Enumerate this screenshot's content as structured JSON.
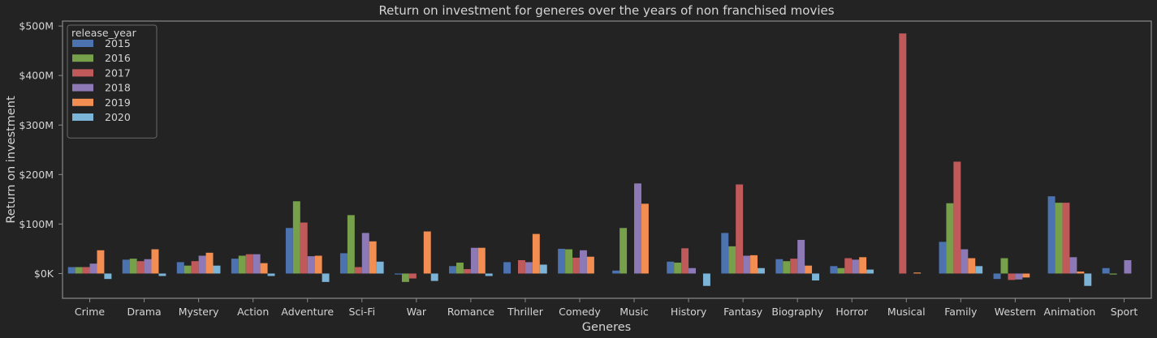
{
  "chart_data": {
    "type": "bar",
    "title": "Return on investment for generes over the years of non franchised movies",
    "xlabel": "Generes",
    "ylabel": "Return on investment",
    "ylim": [
      -50,
      510
    ],
    "yticks": [
      0,
      100,
      200,
      300,
      400,
      500
    ],
    "ytick_labels": [
      "$0K",
      "$100M",
      "$200M",
      "$300M",
      "$400M",
      "$500M"
    ],
    "grid": false,
    "legend_position": "top-left",
    "legend_title": "release_year",
    "categories": [
      "Crime",
      "Drama",
      "Mystery",
      "Action",
      "Adventure",
      "Sci-Fi",
      "War",
      "Romance",
      "Thriller",
      "Comedy",
      "Music",
      "History",
      "Fantasy",
      "Biography",
      "Horror",
      "Musical",
      "Family",
      "Western",
      "Animation",
      "Sport"
    ],
    "series": [
      {
        "name": "2015",
        "color": "#4c72b0",
        "values": [
          13,
          28,
          23,
          30,
          92,
          41,
          -2,
          15,
          23,
          50,
          6,
          24,
          82,
          29,
          15,
          null,
          64,
          -11,
          156,
          11
        ]
      },
      {
        "name": "2016",
        "color": "#77a04b",
        "values": [
          13,
          30,
          16,
          36,
          146,
          118,
          -17,
          22,
          null,
          49,
          92,
          22,
          55,
          25,
          11,
          null,
          142,
          31,
          143,
          -2
        ]
      },
      {
        "name": "2017",
        "color": "#c05a5a",
        "values": [
          13,
          25,
          25,
          39,
          103,
          13,
          -10,
          9,
          27,
          32,
          null,
          51,
          180,
          30,
          31,
          485,
          226,
          -13,
          143,
          null
        ]
      },
      {
        "name": "2018",
        "color": "#8c79b5",
        "values": [
          20,
          29,
          36,
          39,
          35,
          82,
          null,
          52,
          23,
          47,
          182,
          11,
          36,
          68,
          28,
          null,
          49,
          -12,
          33,
          27
        ]
      },
      {
        "name": "2019",
        "color": "#f28e52",
        "values": [
          47,
          49,
          42,
          21,
          36,
          65,
          85,
          52,
          80,
          34,
          141,
          null,
          37,
          16,
          33,
          2,
          31,
          -8,
          4,
          null
        ]
      },
      {
        "name": "2020",
        "color": "#7cb4d8",
        "values": [
          -11,
          -5,
          16,
          -5,
          -17,
          24,
          -15,
          -5,
          18,
          null,
          null,
          -25,
          11,
          -14,
          8,
          null,
          15,
          null,
          -25,
          null
        ]
      }
    ]
  },
  "colors": {
    "background": "#232323",
    "frame": "#8a8a8a",
    "text": "#d4d4d4"
  }
}
